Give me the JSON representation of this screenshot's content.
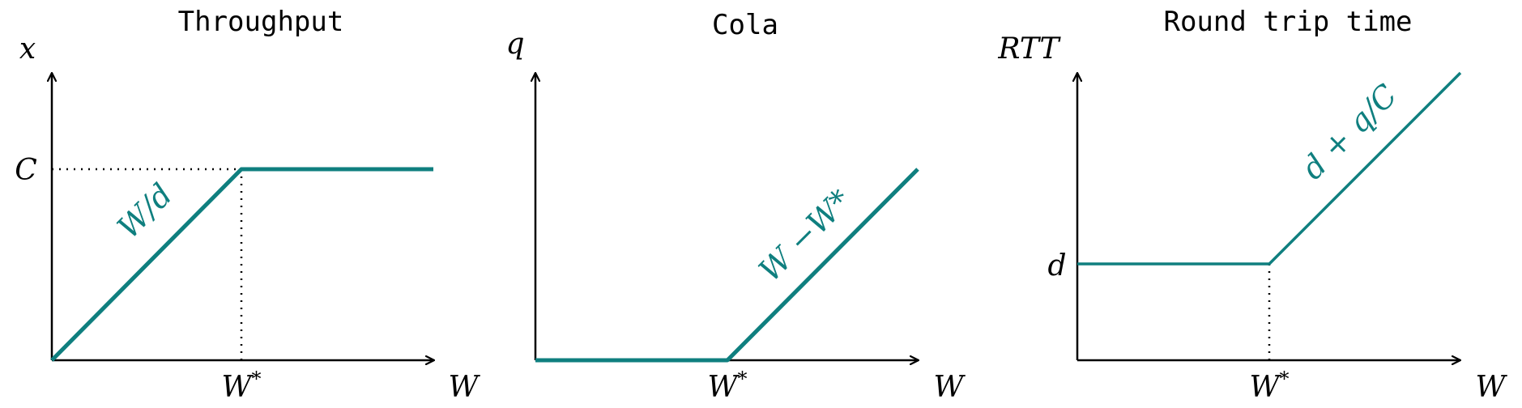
{
  "accent_color": "#0f7f7f",
  "panels": [
    {
      "title": "Throughput",
      "y_label": "x",
      "x_label": "W",
      "x_tick": {
        "base": "W",
        "sup": "*"
      },
      "y_tick": "C",
      "curve_label": "W/d",
      "curve": "linear-rise-then-flat",
      "guides": [
        "horizontal-to-knee",
        "vertical-to-knee"
      ]
    },
    {
      "title": "Cola",
      "y_label": "q",
      "x_label": "W",
      "x_tick": {
        "base": "W",
        "sup": "*"
      },
      "y_tick": "",
      "curve_label": "W −W*",
      "curve": "flat-then-linear-rise",
      "guides": []
    },
    {
      "title": "Round trip time",
      "y_label": "RTT",
      "x_label": "W",
      "x_tick": {
        "base": "W",
        "sup": "*"
      },
      "y_tick": "d",
      "curve_label": "d + q/C",
      "curve": "flat-then-linear-rise",
      "guides": [
        "vertical-to-knee"
      ]
    }
  ]
}
